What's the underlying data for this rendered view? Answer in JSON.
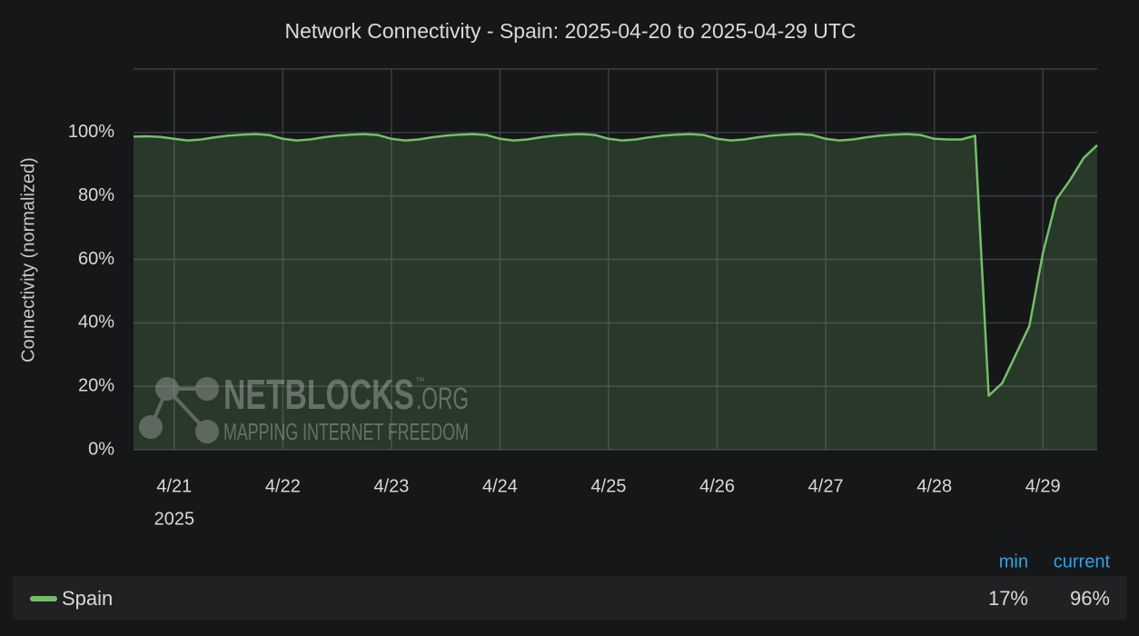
{
  "chart_data": {
    "type": "line",
    "title": "Network Connectivity - Spain: 2025-04-20 to 2025-04-29 UTC",
    "y_label": "Connectivity (normalized)",
    "x": [
      "2025-04-20T15:00",
      "2025-04-20T18:00",
      "2025-04-20T21:00",
      "2025-04-21T00:00",
      "2025-04-21T03:00",
      "2025-04-21T06:00",
      "2025-04-21T09:00",
      "2025-04-21T12:00",
      "2025-04-21T15:00",
      "2025-04-21T18:00",
      "2025-04-21T21:00",
      "2025-04-22T00:00",
      "2025-04-22T03:00",
      "2025-04-22T06:00",
      "2025-04-22T09:00",
      "2025-04-22T12:00",
      "2025-04-22T15:00",
      "2025-04-22T18:00",
      "2025-04-22T21:00",
      "2025-04-23T00:00",
      "2025-04-23T03:00",
      "2025-04-23T06:00",
      "2025-04-23T09:00",
      "2025-04-23T12:00",
      "2025-04-23T15:00",
      "2025-04-23T18:00",
      "2025-04-23T21:00",
      "2025-04-24T00:00",
      "2025-04-24T03:00",
      "2025-04-24T06:00",
      "2025-04-24T09:00",
      "2025-04-24T12:00",
      "2025-04-24T15:00",
      "2025-04-24T18:00",
      "2025-04-24T21:00",
      "2025-04-25T00:00",
      "2025-04-25T03:00",
      "2025-04-25T06:00",
      "2025-04-25T09:00",
      "2025-04-25T12:00",
      "2025-04-25T15:00",
      "2025-04-25T18:00",
      "2025-04-25T21:00",
      "2025-04-26T00:00",
      "2025-04-26T03:00",
      "2025-04-26T06:00",
      "2025-04-26T09:00",
      "2025-04-26T12:00",
      "2025-04-26T15:00",
      "2025-04-26T18:00",
      "2025-04-26T21:00",
      "2025-04-27T00:00",
      "2025-04-27T03:00",
      "2025-04-27T06:00",
      "2025-04-27T09:00",
      "2025-04-27T12:00",
      "2025-04-27T15:00",
      "2025-04-27T18:00",
      "2025-04-27T21:00",
      "2025-04-28T00:00",
      "2025-04-28T03:00",
      "2025-04-28T06:00",
      "2025-04-28T09:00",
      "2025-04-28T12:00",
      "2025-04-28T15:00",
      "2025-04-28T18:00",
      "2025-04-28T21:00",
      "2025-04-29T00:00",
      "2025-04-29T03:00",
      "2025-04-29T06:00",
      "2025-04-29T09:00",
      "2025-04-29T12:00"
    ],
    "series": [
      {
        "name": "Spain",
        "color": "#73bf69",
        "values": [
          98.7,
          98.8,
          98.6,
          98,
          97.5,
          97.8,
          98.5,
          99,
          99.3,
          99.5,
          99.2,
          98,
          97.5,
          97.8,
          98.5,
          99,
          99.3,
          99.5,
          99.2,
          98,
          97.5,
          97.8,
          98.5,
          99,
          99.3,
          99.5,
          99.2,
          98,
          97.5,
          97.8,
          98.5,
          99,
          99.3,
          99.5,
          99.2,
          98,
          97.5,
          97.8,
          98.5,
          99,
          99.3,
          99.5,
          99.2,
          98,
          97.5,
          97.8,
          98.5,
          99,
          99.3,
          99.5,
          99.2,
          98,
          97.5,
          97.8,
          98.5,
          99,
          99.3,
          99.5,
          99.2,
          98,
          97.8,
          97.8,
          99,
          17,
          21,
          30,
          39,
          62,
          79,
          85,
          92,
          96
        ]
      }
    ],
    "xlim": [
      "2025-04-20T15:00",
      "2025-04-29T12:00"
    ],
    "xticks": [
      {
        "value": "2025-04-21T00:00",
        "label": "4/21"
      },
      {
        "value": "2025-04-22T00:00",
        "label": "4/22"
      },
      {
        "value": "2025-04-23T00:00",
        "label": "4/23"
      },
      {
        "value": "2025-04-24T00:00",
        "label": "4/24"
      },
      {
        "value": "2025-04-25T00:00",
        "label": "4/25"
      },
      {
        "value": "2025-04-26T00:00",
        "label": "4/26"
      },
      {
        "value": "2025-04-27T00:00",
        "label": "4/27"
      },
      {
        "value": "2025-04-28T00:00",
        "label": "4/28"
      },
      {
        "value": "2025-04-29T00:00",
        "label": "4/29"
      }
    ],
    "x_year": "2025",
    "ylim": [
      0,
      120
    ],
    "yticks": [
      {
        "value": 0,
        "label": "0%"
      },
      {
        "value": 20,
        "label": "20%"
      },
      {
        "value": 40,
        "label": "40%"
      },
      {
        "value": 60,
        "label": "60%"
      },
      {
        "value": 80,
        "label": "80%"
      },
      {
        "value": 100,
        "label": "100%"
      }
    ],
    "grid": true,
    "legend_stats": [
      {
        "name": "min",
        "value": 17,
        "label": "17%"
      },
      {
        "name": "current",
        "value": 96,
        "label": "96%"
      }
    ],
    "watermark": {
      "title": "NETBLOCKS",
      "tm": "™",
      "suffix": ".ORG",
      "tagline": "MAPPING INTERNET FREEDOM"
    }
  }
}
